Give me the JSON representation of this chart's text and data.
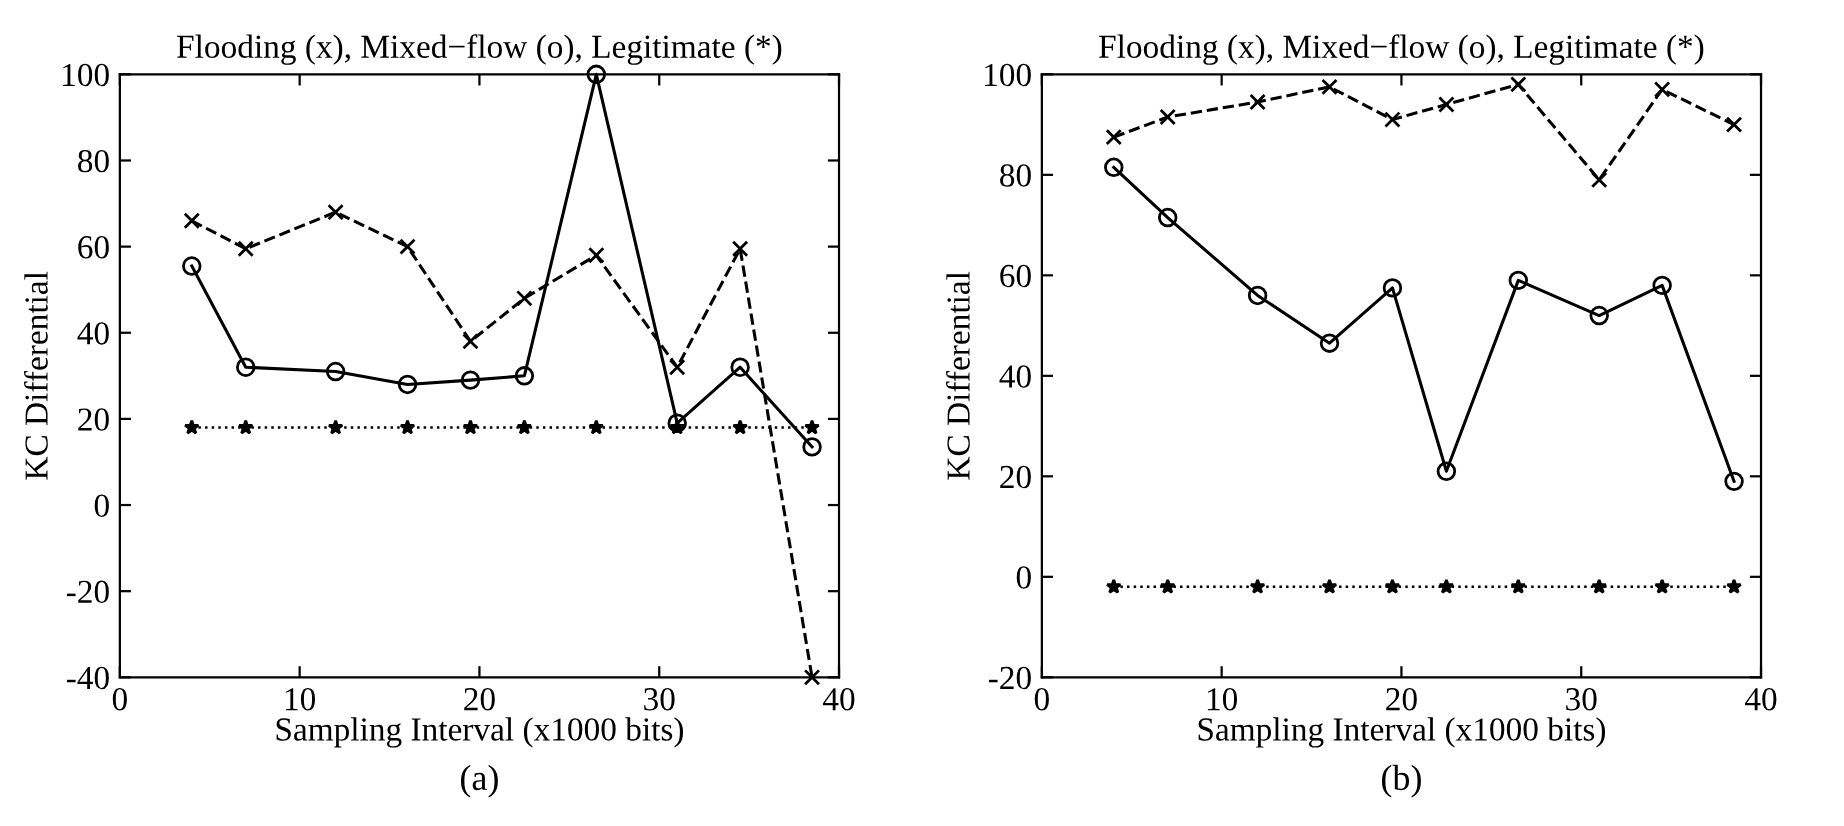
{
  "chart_data": [
    {
      "type": "line",
      "title": "Flooding (x), Mixed−flow (o), Legitimate (*)",
      "xlabel": "Sampling Interval (x1000 bits)",
      "ylabel": "KC Differential",
      "annotations": [
        "(a)"
      ],
      "x": [
        4,
        7,
        12,
        16,
        19.5,
        22.5,
        26.5,
        31,
        34.5,
        38.5
      ],
      "xlim": [
        0,
        40
      ],
      "xticks": [
        0,
        10,
        20,
        30,
        40
      ],
      "ylim": [
        -40,
        100
      ],
      "yticks": [
        -40,
        -20,
        0,
        20,
        40,
        60,
        80,
        100
      ],
      "grid": false,
      "series": [
        {
          "color": "#000000",
          "marker": "cross",
          "line_style": "dashed",
          "values": [
            66,
            59.5,
            68,
            60,
            38,
            48,
            58,
            32,
            59.5,
            -40
          ]
        },
        {
          "color": "#000000",
          "marker": "circle",
          "line_style": "solid",
          "values": [
            55.5,
            32,
            31,
            28,
            29,
            30,
            100,
            19,
            32,
            13.5
          ]
        },
        {
          "color": "#000000",
          "marker": "star",
          "line_style": "dotted",
          "values": [
            18,
            18,
            18,
            18,
            18,
            18,
            18,
            18,
            18,
            18
          ]
        }
      ]
    },
    {
      "type": "line",
      "title": "Flooding (x), Mixed−flow (o), Legitimate (*)",
      "xlabel": "Sampling Interval (x1000 bits)",
      "ylabel": "KC Differential",
      "annotations": [
        "(b)"
      ],
      "x": [
        4,
        7,
        12,
        16,
        19.5,
        22.5,
        26.5,
        31,
        34.5,
        38.5
      ],
      "xlim": [
        0,
        40
      ],
      "xticks": [
        0,
        10,
        20,
        30,
        40
      ],
      "ylim": [
        -20,
        100
      ],
      "yticks": [
        -20,
        0,
        20,
        40,
        60,
        80,
        100
      ],
      "grid": false,
      "series": [
        {
          "color": "#000000",
          "marker": "cross",
          "line_style": "dashed",
          "values": [
            87.5,
            91.5,
            94.5,
            97.5,
            91,
            94,
            98,
            79,
            97,
            90
          ]
        },
        {
          "color": "#000000",
          "marker": "circle",
          "line_style": "solid",
          "values": [
            81.5,
            71.5,
            56,
            46.5,
            57.5,
            21,
            59,
            52,
            58,
            19
          ]
        },
        {
          "color": "#000000",
          "marker": "star",
          "line_style": "dotted",
          "values": [
            -2,
            -2,
            -2,
            -2,
            -2,
            -2,
            -2,
            -2,
            -2,
            -2
          ]
        }
      ]
    }
  ]
}
